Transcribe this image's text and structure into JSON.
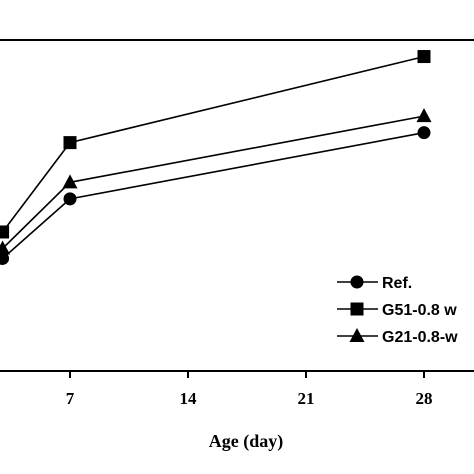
{
  "chart_data": {
    "type": "line",
    "xlabel": "Age (day)",
    "ylabel": "",
    "title": "",
    "x_ticks": [
      7,
      14,
      21,
      28
    ],
    "xlim": [
      3,
      32
    ],
    "ylim": [
      0,
      100
    ],
    "grid": false,
    "legend_position": "bottom-right",
    "series": [
      {
        "name": "Ref.",
        "marker": "circle",
        "x": [
          3,
          7,
          28
        ],
        "y": [
          34,
          52,
          72
        ]
      },
      {
        "name": "G51-0.8 w",
        "marker": "square",
        "x": [
          3,
          7,
          28
        ],
        "y": [
          42,
          69,
          95
        ]
      },
      {
        "name": "G21-0.8-w",
        "marker": "triangle",
        "x": [
          3,
          7,
          28
        ],
        "y": [
          37,
          57,
          77
        ]
      }
    ]
  }
}
